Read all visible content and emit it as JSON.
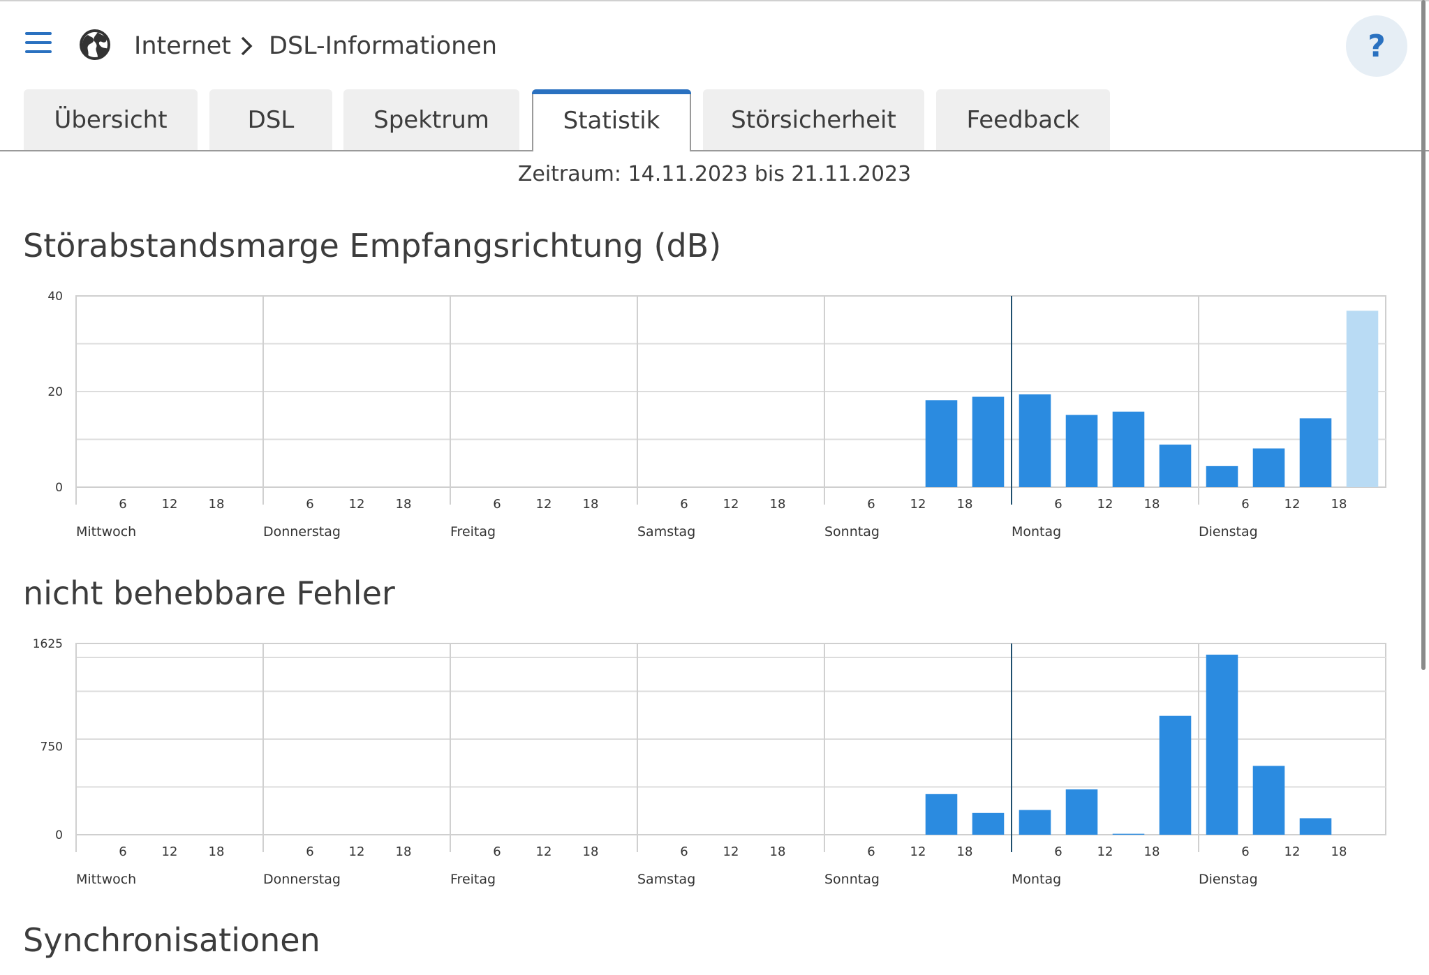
{
  "breadcrumb": {
    "root": "Internet",
    "current": "DSL-Informationen"
  },
  "help": {
    "label": "?"
  },
  "tabs": [
    {
      "label": "Übersicht"
    },
    {
      "label": "DSL"
    },
    {
      "label": "Spektrum"
    },
    {
      "label": "Statistik",
      "active": true
    },
    {
      "label": "Störsicherheit"
    },
    {
      "label": "Feedback"
    }
  ],
  "period": "Zeitraum: 14.11.2023 bis 21.11.2023",
  "section_titles": {
    "snr": "Störabstandsmarge Empfangsrichtung (dB)",
    "errors": "nicht behebbare Fehler",
    "sync": "Synchronisationen"
  },
  "colors": {
    "accent": "#2a71c0",
    "bar": "#2b8be0",
    "bar_current": "#b9dbf4"
  },
  "chart_data": [
    {
      "type": "bar",
      "title": "Störabstandsmarge Empfangsrichtung (dB)",
      "ylim": [
        0,
        40
      ],
      "yticks": [
        "40",
        "20",
        "0"
      ],
      "days": [
        "Mittwoch",
        "Donnerstag",
        "Freitag",
        "Samstag",
        "Sonntag",
        "Montag",
        "Dienstag"
      ],
      "hour_ticks": [
        "6",
        "12",
        "18"
      ],
      "bin_hours": 6,
      "bars": [
        {
          "day": 4,
          "hour": 12,
          "value": 18.2
        },
        {
          "day": 4,
          "hour": 18,
          "value": 18.9
        },
        {
          "day": 5,
          "hour": 0,
          "value": 19.4
        },
        {
          "day": 5,
          "hour": 6,
          "value": 15.1
        },
        {
          "day": 5,
          "hour": 12,
          "value": 15.8
        },
        {
          "day": 5,
          "hour": 18,
          "value": 8.9
        },
        {
          "day": 6,
          "hour": 0,
          "value": 4.4
        },
        {
          "day": 6,
          "hour": 6,
          "value": 8.1
        },
        {
          "day": 6,
          "hour": 12,
          "value": 14.4
        },
        {
          "day": 6,
          "hour": 18,
          "value": 36.9,
          "current": true
        }
      ]
    },
    {
      "type": "bar",
      "title": "nicht behebbare Fehler",
      "ylim": [
        0,
        1625
      ],
      "yticks": [
        "1625",
        "750",
        "0"
      ],
      "days": [
        "Mittwoch",
        "Donnerstag",
        "Freitag",
        "Samstag",
        "Sonntag",
        "Montag",
        "Dienstag"
      ],
      "hour_ticks": [
        "6",
        "12",
        "18"
      ],
      "bin_hours": 6,
      "bars": [
        {
          "day": 4,
          "hour": 12,
          "value": 345
        },
        {
          "day": 4,
          "hour": 18,
          "value": 185
        },
        {
          "day": 5,
          "hour": 0,
          "value": 210
        },
        {
          "day": 5,
          "hour": 6,
          "value": 385
        },
        {
          "day": 5,
          "hour": 12,
          "value": 8
        },
        {
          "day": 5,
          "hour": 18,
          "value": 1010
        },
        {
          "day": 6,
          "hour": 0,
          "value": 1530
        },
        {
          "day": 6,
          "hour": 6,
          "value": 585
        },
        {
          "day": 6,
          "hour": 12,
          "value": 140
        }
      ]
    }
  ]
}
